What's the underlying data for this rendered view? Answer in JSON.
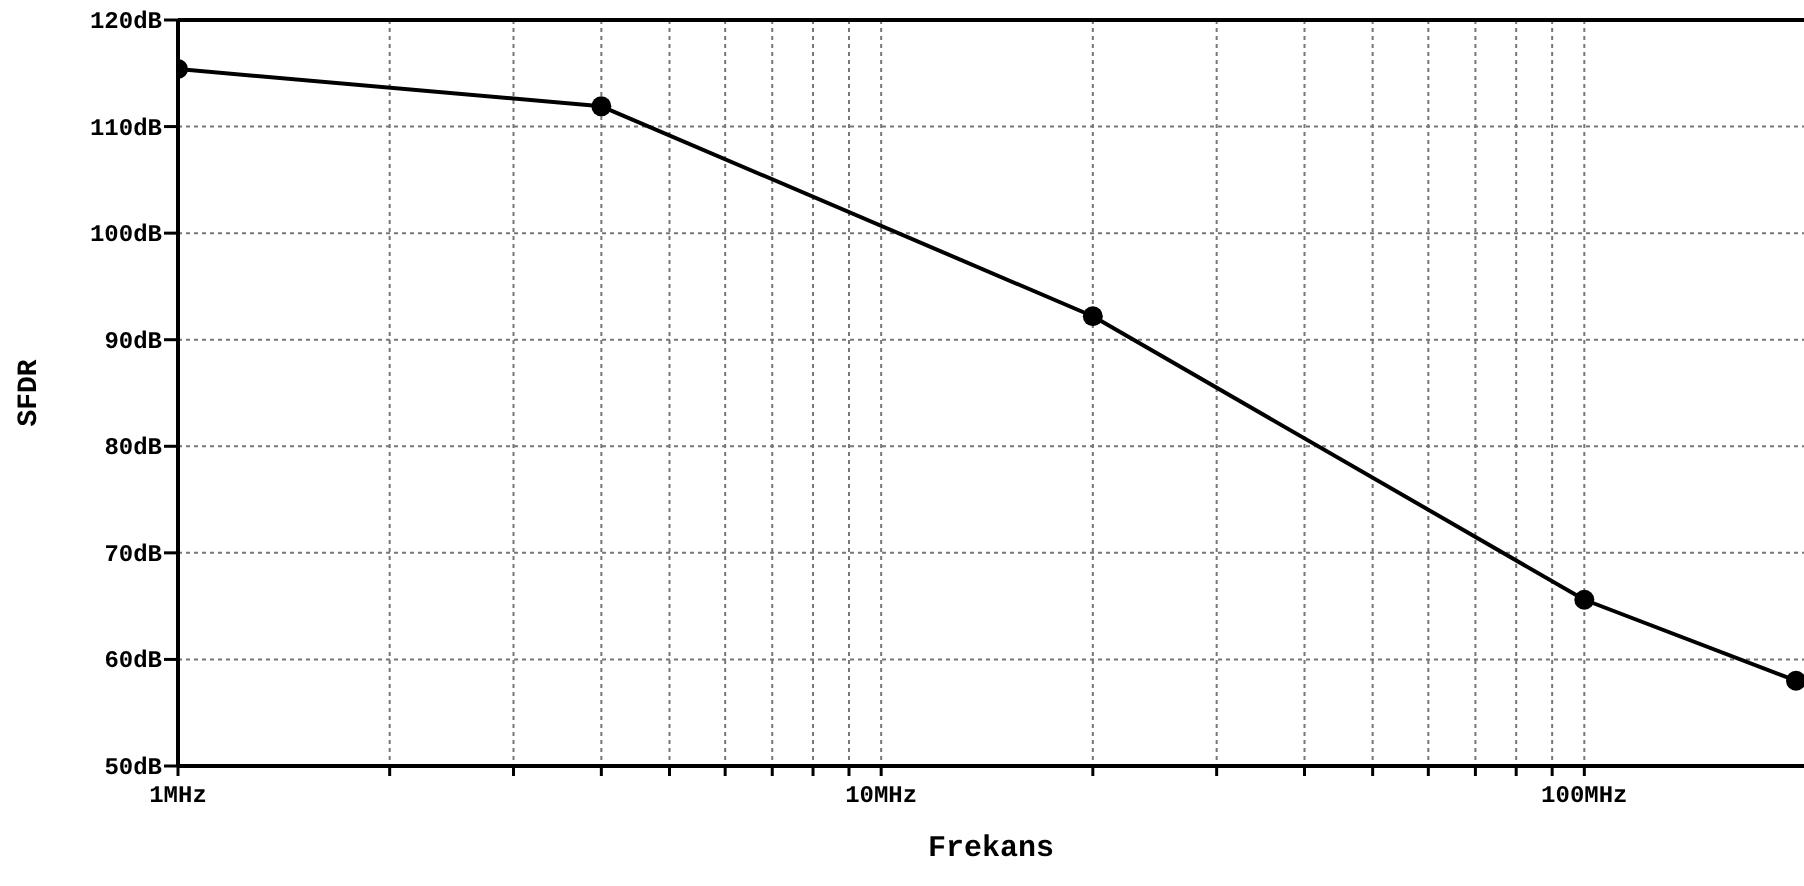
{
  "chart_data": {
    "type": "line",
    "xlabel": "Frekans",
    "ylabel": "SFDR",
    "x": [
      1,
      4,
      20,
      100,
      200
    ],
    "series": [
      {
        "color": "#000000",
        "values": [
          115.4,
          111.9,
          92.2,
          65.6,
          58.0
        ]
      }
    ],
    "log": "x",
    "xlim": [
      1,
      200
    ],
    "ylim": [
      50,
      120
    ],
    "xticks": [
      {
        "value": 1,
        "label": "1MHz"
      },
      {
        "value": 2,
        "label": null
      },
      {
        "value": 3,
        "label": null
      },
      {
        "value": 4,
        "label": null
      },
      {
        "value": 5,
        "label": null
      },
      {
        "value": 6,
        "label": null
      },
      {
        "value": 7,
        "label": null
      },
      {
        "value": 8,
        "label": null
      },
      {
        "value": 9,
        "label": null
      },
      {
        "value": 10,
        "label": "10MHz"
      },
      {
        "value": 20,
        "label": null
      },
      {
        "value": 30,
        "label": null
      },
      {
        "value": 40,
        "label": null
      },
      {
        "value": 50,
        "label": null
      },
      {
        "value": 60,
        "label": null
      },
      {
        "value": 70,
        "label": null
      },
      {
        "value": 80,
        "label": null
      },
      {
        "value": 90,
        "label": null
      },
      {
        "value": 100,
        "label": "100MHz"
      }
    ],
    "yticks": [
      {
        "value": 50,
        "label": "50dB"
      },
      {
        "value": 60,
        "label": "60dB"
      },
      {
        "value": 70,
        "label": "70dB"
      },
      {
        "value": 80,
        "label": "80dB"
      },
      {
        "value": 90,
        "label": "90dB"
      },
      {
        "value": 100,
        "label": "100dB"
      },
      {
        "value": 110,
        "label": "110dB"
      },
      {
        "value": 120,
        "label": "120dB"
      }
    ],
    "grid": true,
    "marker": "circle",
    "line_style": "solid"
  }
}
